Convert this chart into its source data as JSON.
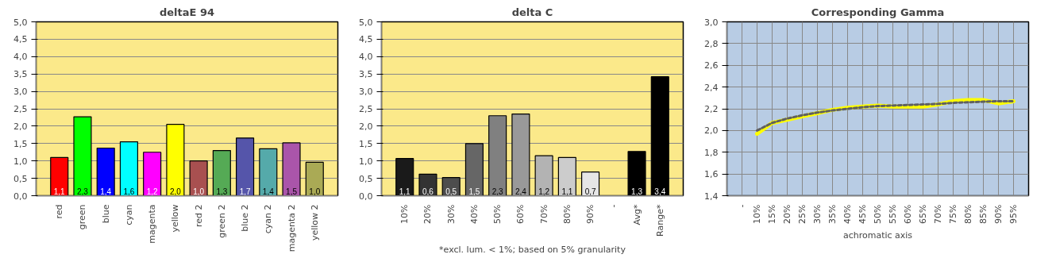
{
  "chart_data": [
    {
      "type": "bar",
      "title": "deltaE 94",
      "categories": [
        "red",
        "green",
        "blue",
        "cyan",
        "magenta",
        "yellow",
        "red 2",
        "green 2",
        "blue 2",
        "cyan 2",
        "magenta 2",
        "yellow 2"
      ],
      "values": [
        1.1,
        2.27,
        1.37,
        1.55,
        1.25,
        2.05,
        1.0,
        1.3,
        1.66,
        1.35,
        1.52,
        0.96
      ],
      "colors": [
        "#ff0000",
        "#00ff00",
        "#0000ff",
        "#00ffff",
        "#ff00ff",
        "#ffff00",
        "#a85050",
        "#55aa55",
        "#5555aa",
        "#55aaaa",
        "#aa55aa",
        "#aaaa55"
      ],
      "value_labels": [
        "1,1",
        "2,3",
        "1,4",
        "1,6",
        "1,2",
        "2,0",
        "1,0",
        "1,3",
        "1,7",
        "1,4",
        "1,5",
        "1,0"
      ],
      "ylim": [
        0,
        5
      ],
      "yticks": [
        {
          "value": 0,
          "label": "0,0"
        },
        {
          "value": 0.5,
          "label": "0,5"
        },
        {
          "value": 1,
          "label": "1,0"
        },
        {
          "value": 1.5,
          "label": "1,5"
        },
        {
          "value": 2,
          "label": "2,0"
        },
        {
          "value": 2.5,
          "label": "2,5"
        },
        {
          "value": 3,
          "label": "3,0"
        },
        {
          "value": 3.5,
          "label": "3,5"
        },
        {
          "value": 4,
          "label": "4,0"
        },
        {
          "value": 4.5,
          "label": "4,5"
        },
        {
          "value": 5,
          "label": "5,0"
        }
      ],
      "grid": "y"
    },
    {
      "type": "bar",
      "title": "delta C",
      "categories": [
        "10%",
        "20%",
        "30%",
        "40%",
        "50%",
        "60%",
        "70%",
        "80%",
        "90%",
        "-",
        "Avg*",
        "Range*"
      ],
      "values": [
        1.07,
        0.62,
        0.52,
        1.5,
        2.3,
        2.35,
        1.15,
        1.1,
        0.68,
        null,
        1.27,
        3.42
      ],
      "colors": [
        "#1a1a1a",
        "#333333",
        "#4d4d4d",
        "#666666",
        "#808080",
        "#999999",
        "#b3b3b3",
        "#cccccc",
        "#e6e6e6",
        "#000000",
        "#000000",
        "#000000"
      ],
      "value_labels": [
        "1,1",
        "0,6",
        "0,5",
        "1,5",
        "2,3",
        "2,4",
        "1,2",
        "1,1",
        "0,7",
        null,
        "1,3",
        "3,4"
      ],
      "annotations": [
        "*excl. lum. < 1%; based on 5% granularity"
      ],
      "ylim": [
        0,
        5
      ],
      "yticks": [
        {
          "value": 0,
          "label": "0,0"
        },
        {
          "value": 0.5,
          "label": "0,5"
        },
        {
          "value": 1,
          "label": "1,0"
        },
        {
          "value": 1.5,
          "label": "1,5"
        },
        {
          "value": 2,
          "label": "2,0"
        },
        {
          "value": 2.5,
          "label": "2,5"
        },
        {
          "value": 3,
          "label": "3,0"
        },
        {
          "value": 3.5,
          "label": "3,5"
        },
        {
          "value": 4,
          "label": "4,0"
        },
        {
          "value": 4.5,
          "label": "4,5"
        },
        {
          "value": 5,
          "label": "5,0"
        }
      ],
      "grid": "y"
    },
    {
      "type": "line",
      "title": "Corresponding Gamma",
      "xlabel": "achromatic axis",
      "categories": [
        "-",
        "10%",
        "15%",
        "20%",
        "25%",
        "30%",
        "35%",
        "40%",
        "45%",
        "50%",
        "55%",
        "60%",
        "65%",
        "70%",
        "75%",
        "80%",
        "85%",
        "90%",
        "95%"
      ],
      "series": [
        {
          "color": "#ffff00",
          "line_style": "solid",
          "values": [
            null,
            1.97,
            2.07,
            2.1,
            2.13,
            2.16,
            2.19,
            2.21,
            2.22,
            2.23,
            2.22,
            2.22,
            2.22,
            2.24,
            2.27,
            2.28,
            2.28,
            2.25,
            2.27
          ]
        },
        {
          "color": "#606060",
          "line_style": "dashed",
          "values": [
            null,
            2.0,
            2.07,
            2.11,
            2.14,
            2.165,
            2.185,
            2.2,
            2.215,
            2.225,
            2.23,
            2.235,
            2.24,
            2.245,
            2.255,
            2.26,
            2.265,
            2.27,
            2.27
          ]
        }
      ],
      "ylim": [
        1.4,
        3.0
      ],
      "yticks": [
        {
          "value": 1.4,
          "label": "1,4"
        },
        {
          "value": 1.6,
          "label": "1,6"
        },
        {
          "value": 1.8,
          "label": "1,8"
        },
        {
          "value": 2.0,
          "label": "2,0"
        },
        {
          "value": 2.2,
          "label": "2,2"
        },
        {
          "value": 2.4,
          "label": "2,4"
        },
        {
          "value": 2.6,
          "label": "2,6"
        },
        {
          "value": 2.8,
          "label": "2,8"
        },
        {
          "value": 3.0,
          "label": "3,0"
        }
      ],
      "grid": true,
      "marker": "none"
    }
  ]
}
